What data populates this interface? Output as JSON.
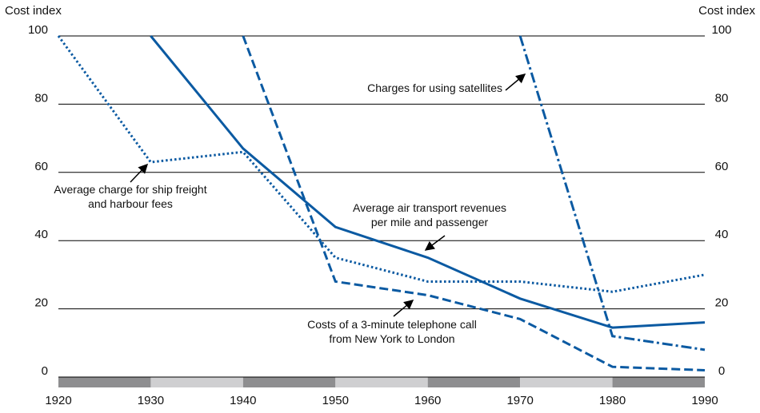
{
  "chart_data": {
    "type": "line",
    "y_label": "Cost index",
    "y2_label": "Cost index",
    "x": [
      1920,
      1930,
      1940,
      1950,
      1960,
      1970,
      1980,
      1990
    ],
    "xlim": [
      1920,
      1990
    ],
    "xticks": [
      1920,
      1930,
      1940,
      1950,
      1960,
      1970,
      1980,
      1990
    ],
    "ylim": [
      0,
      100
    ],
    "yticks": [
      0,
      20,
      40,
      60,
      80,
      100
    ],
    "y2lim": [
      0,
      100
    ],
    "y2ticks": [
      0,
      20,
      40,
      60,
      80,
      100
    ],
    "grid": true,
    "series": [
      {
        "color": "#0b5aa2",
        "dash": "dotted",
        "values": [
          100,
          63,
          66,
          35,
          28,
          28,
          25,
          30
        ]
      },
      {
        "color": "#0b5aa2",
        "dash": "solid",
        "values": [
          null,
          100,
          67,
          44,
          35,
          23,
          14.5,
          16
        ]
      },
      {
        "color": "#0b5aa2",
        "dash": "dashed",
        "values": [
          null,
          null,
          100,
          28,
          24,
          17,
          3,
          2
        ]
      },
      {
        "color": "#0b5aa2",
        "dash": "dashdot",
        "values": [
          null,
          null,
          null,
          null,
          null,
          100,
          12,
          8
        ]
      }
    ],
    "annotations": [
      {
        "lines": [
          "Average charge for ship freight",
          "and harbour fees"
        ]
      },
      {
        "lines": [
          "Average air transport revenues",
          "per mile and passenger"
        ]
      },
      {
        "lines": [
          "Costs of a 3-minute telephone call",
          "from New York to London"
        ]
      },
      {
        "lines": [
          "Charges for using satellites"
        ]
      }
    ]
  }
}
